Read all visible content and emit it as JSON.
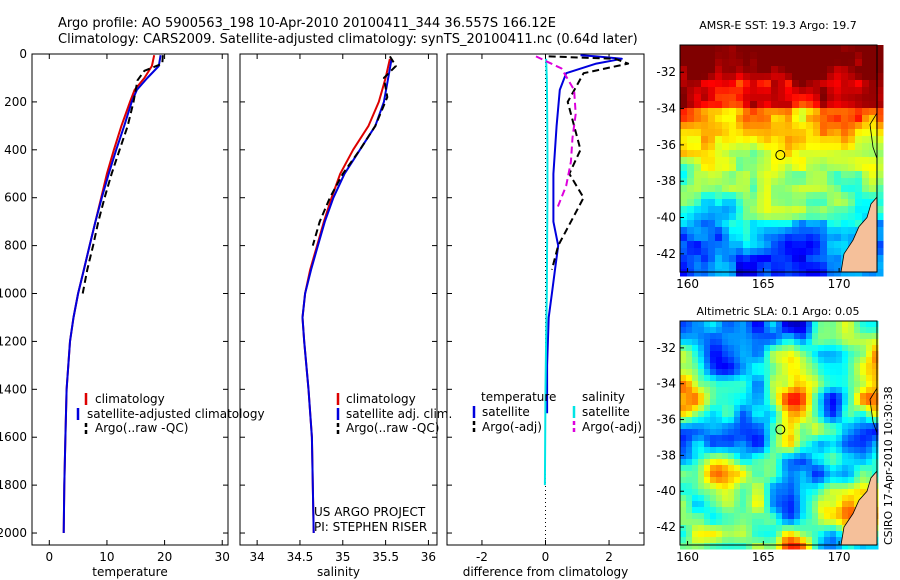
{
  "header": {
    "line1": "Argo profile: AO 5900563_198 10-Apr-2010 20100411_344 36.557S 166.12E",
    "line2": "Climatology: CARS2009. Satellite-adjusted climatology: synTS_20100411.nc (0.64d later)"
  },
  "side_text": "CSIRO 17-Apr-2010 10:30:38",
  "project_text": [
    "US ARGO PROJECT",
    "PI: STEPHEN RISER"
  ],
  "colors": {
    "climatology": "#dd0000",
    "satellite": "#0000dd",
    "argo": "#000000",
    "salinity_satellite": "#00e5e5",
    "salinity_argo": "#dd00dd"
  },
  "chart_data": [
    {
      "type": "line",
      "panel": "temperature",
      "xlabel": "temperature",
      "ylabel": "",
      "xlim": [
        -3,
        31
      ],
      "ylim": [
        2050,
        0
      ],
      "xticks": [
        0,
        10,
        20,
        30
      ],
      "yticks": [
        0,
        200,
        400,
        600,
        800,
        1000,
        1200,
        1400,
        1600,
        1800,
        2000
      ],
      "grid": false,
      "legend": [
        "climatology",
        "satellite-adjusted climatology",
        "Argo(..raw -QC)"
      ],
      "series": [
        {
          "name": "climatology",
          "style": "solid",
          "color": "#dd0000",
          "x": [
            18.2,
            17.8,
            16.5,
            14.8,
            14.0,
            12.5,
            11.2,
            10.0,
            9.0,
            8.0,
            7.0,
            6.0,
            5.0,
            4.2,
            3.6,
            3.3,
            3.0,
            2.8,
            2.6,
            2.5
          ],
          "y": [
            5,
            50,
            100,
            150,
            200,
            300,
            400,
            500,
            600,
            700,
            800,
            900,
            1000,
            1100,
            1200,
            1300,
            1400,
            1600,
            1800,
            2000
          ]
        },
        {
          "name": "satellite-adjusted climatology",
          "style": "solid",
          "color": "#0000dd",
          "x": [
            19.3,
            19.0,
            17.0,
            15.2,
            14.3,
            13.0,
            11.6,
            10.3,
            9.1,
            8.0,
            7.0,
            6.0,
            5.0,
            4.2,
            3.6,
            3.3,
            3.0,
            2.8,
            2.6,
            2.5
          ],
          "y": [
            5,
            50,
            100,
            150,
            200,
            300,
            400,
            500,
            600,
            700,
            800,
            900,
            1000,
            1100,
            1200,
            1300,
            1400,
            1600,
            1800,
            2000
          ]
        },
        {
          "name": "Argo(..raw -QC)",
          "style": "dashed",
          "color": "#000000",
          "x": [
            19.7,
            19.6,
            16.5,
            15.3,
            14.6,
            13.6,
            12.2,
            10.8,
            9.6,
            8.5,
            7.6,
            6.6,
            5.8
          ],
          "y": [
            5,
            40,
            70,
            110,
            200,
            300,
            400,
            500,
            600,
            700,
            800,
            900,
            1000
          ]
        }
      ]
    },
    {
      "type": "line",
      "panel": "salinity",
      "xlabel": "salinity",
      "ylabel": "",
      "xlim": [
        33.8,
        36.1
      ],
      "ylim": [
        2050,
        0
      ],
      "xticks": [
        34,
        34.5,
        35,
        35.5,
        36
      ],
      "xticklabels": [
        "34",
        "34.5",
        "35",
        "35.5",
        "36"
      ],
      "grid": false,
      "legend": [
        "climatology",
        "satellite adj. clim.",
        "Argo(..raw -QC)"
      ],
      "series": [
        {
          "name": "climatology",
          "style": "solid",
          "color": "#dd0000",
          "x": [
            35.55,
            35.5,
            35.42,
            35.3,
            35.12,
            34.97,
            34.87,
            34.78,
            34.7,
            34.62,
            34.56,
            34.53,
            34.55,
            34.6,
            34.64,
            34.66
          ],
          "y": [
            20,
            100,
            200,
            300,
            400,
            500,
            600,
            700,
            800,
            900,
            1000,
            1100,
            1200,
            1400,
            1600,
            2000
          ]
        },
        {
          "name": "satellite adj. clim.",
          "style": "solid",
          "color": "#0000dd",
          "x": [
            35.57,
            35.53,
            35.48,
            35.38,
            35.2,
            35.02,
            34.89,
            34.79,
            34.71,
            34.63,
            34.56,
            34.53,
            34.55,
            34.6,
            34.64,
            34.66
          ],
          "y": [
            20,
            100,
            200,
            300,
            400,
            500,
            600,
            700,
            800,
            900,
            1000,
            1100,
            1200,
            1400,
            1600,
            2000
          ]
        },
        {
          "name": "Argo(..raw -QC)",
          "style": "dashed",
          "color": "#000000",
          "x": [
            35.55,
            35.62,
            35.48,
            35.52,
            35.38,
            35.2,
            35.0,
            34.85,
            34.73,
            34.65
          ],
          "y": [
            10,
            50,
            100,
            180,
            300,
            400,
            500,
            600,
            700,
            800
          ]
        }
      ]
    },
    {
      "type": "line",
      "panel": "difference",
      "xlabel": "difference from climatology",
      "ylabel": "",
      "xlim": [
        -3.1,
        3.1
      ],
      "ylim": [
        2050,
        0
      ],
      "xticks": [
        -2,
        0,
        2
      ],
      "reference_line": {
        "x": 0,
        "style": "dotted"
      },
      "grid": false,
      "legend": {
        "temperature": [
          "satellite",
          "Argo(-adj)"
        ],
        "salinity": [
          "satellite",
          "Argo(-adj)"
        ]
      },
      "series": [
        {
          "name": "temperature satellite",
          "style": "solid",
          "color": "#0000dd",
          "x": [
            1.1,
            1.6,
            2.4,
            1.6,
            0.65,
            0.45,
            0.35,
            0.25,
            0.25,
            0.4,
            0.3,
            0.2,
            0.1,
            0.05,
            0.05
          ],
          "y": [
            5,
            10,
            20,
            40,
            80,
            150,
            300,
            500,
            700,
            800,
            900,
            1000,
            1100,
            1300,
            1500
          ]
        },
        {
          "name": "temperature Argo(-adj)",
          "style": "dashed",
          "color": "#000000",
          "x": [
            0.1,
            2.2,
            2.6,
            1.2,
            0.7,
            0.9,
            1.1,
            0.75,
            1.2,
            0.8,
            0.4,
            0.2
          ],
          "y": [
            10,
            20,
            40,
            80,
            200,
            300,
            400,
            500,
            600,
            700,
            800,
            900
          ]
        },
        {
          "name": "salinity satellite",
          "style": "solid",
          "color": "#00e5e5",
          "x": [
            0.02,
            0.04,
            0.05,
            0.06,
            0.06,
            0.05,
            0.04,
            0.02,
            0.0,
            -0.01,
            -0.02
          ],
          "y": [
            20,
            100,
            200,
            400,
            600,
            800,
            1000,
            1200,
            1400,
            1600,
            1800
          ]
        },
        {
          "name": "salinity Argo(-adj)",
          "style": "dashed",
          "color": "#dd00dd",
          "x": [
            -0.3,
            0.5,
            0.9,
            0.95,
            0.85,
            0.8,
            0.65,
            0.35
          ],
          "y": [
            10,
            60,
            150,
            250,
            350,
            450,
            550,
            650
          ]
        }
      ]
    },
    {
      "type": "heatmap",
      "panel": "sst_map",
      "title": "AMSR-E SST: 19.3 Argo: 19.7",
      "xlim": [
        159.5,
        172.5
      ],
      "ylim": [
        -43,
        -30.5
      ],
      "xticks": [
        160,
        165,
        170
      ],
      "yticks": [
        -32,
        -34,
        -36,
        -38,
        -40,
        -42
      ],
      "marker": {
        "lon": 166.12,
        "lat": -36.557
      }
    },
    {
      "type": "heatmap",
      "panel": "sla_map",
      "title": "Altimetric SLA: 0.1 Argo: 0.05",
      "xlim": [
        159.5,
        172.5
      ],
      "ylim": [
        -43,
        -30.5
      ],
      "xticks": [
        160,
        165,
        170
      ],
      "yticks": [
        -32,
        -34,
        -36,
        -38,
        -40,
        -42
      ],
      "marker": {
        "lon": 166.12,
        "lat": -36.557
      }
    }
  ]
}
